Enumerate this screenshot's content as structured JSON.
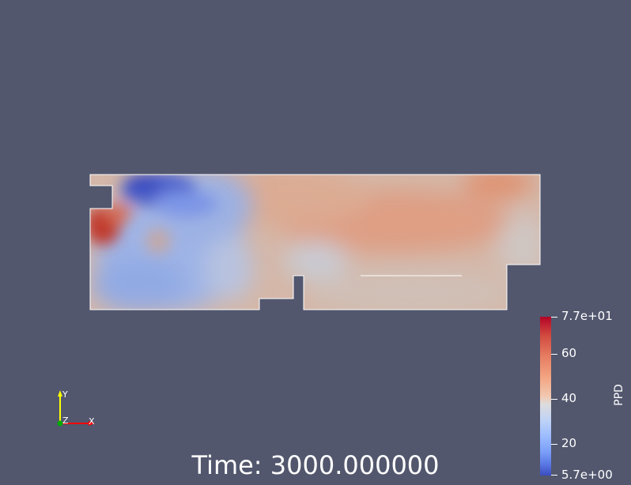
{
  "view": {
    "background": "#52576e",
    "time_label": "Time: 3000.000000"
  },
  "colorbar": {
    "title": "PPD",
    "colormap": "Cool to Warm",
    "range": [
      5.7,
      77
    ],
    "labels": {
      "max": "7.7e+01",
      "t60": "60",
      "t40": "40",
      "t20": "20",
      "min": "5.7e+00"
    }
  },
  "axes": {
    "x_label": "X",
    "y_label": "Y",
    "z_label": "Z",
    "x_color": "#ff0000",
    "y_color": "#ffff00",
    "z_color": "#00ff00"
  }
}
